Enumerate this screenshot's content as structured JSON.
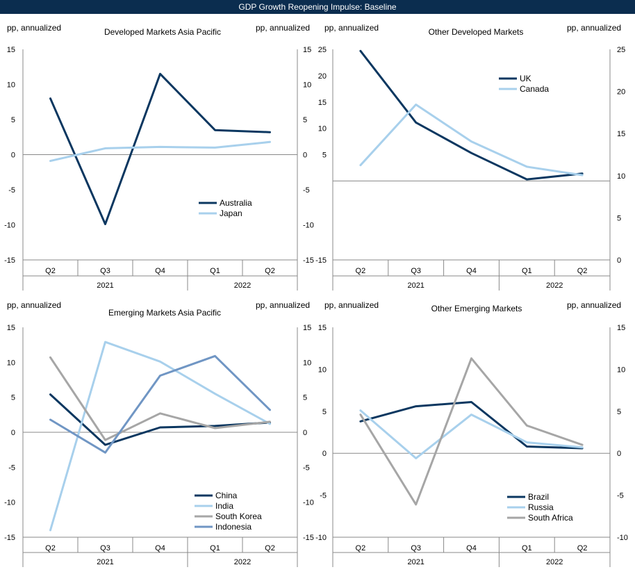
{
  "page_title": "GDP Growth Reopening Impulse: Baseline",
  "colors": {
    "banner": "#0b2d4f",
    "navy": "#0b3760",
    "light_blue": "#a8d0ec",
    "gray": "#a6a6a6",
    "steel_blue": "#7096c4",
    "axis": "#888888"
  },
  "chart_data": [
    {
      "type": "line",
      "title": "Developed Markets Asia Pacific",
      "ylabel_left": "pp, annualized",
      "ylabel_right": "pp, annualized",
      "categories": [
        "Q2",
        "Q3",
        "Q4",
        "Q1",
        "Q2"
      ],
      "year_labels": [
        "2021",
        "2022"
      ],
      "ylim": [
        -15,
        15
      ],
      "yticks": [
        "15",
        "10",
        "5",
        "0",
        "-5",
        "-10",
        "-15"
      ],
      "ylim_right": [
        -15,
        15
      ],
      "yticks_right": [
        "15",
        "10",
        "5",
        "0",
        "-5",
        "-10",
        "-15"
      ],
      "legend_position": "lower-right",
      "series": [
        {
          "name": "Australia",
          "color": "#0b3760",
          "values": [
            8.0,
            -9.9,
            11.5,
            3.5,
            3.2
          ]
        },
        {
          "name": "Japan",
          "color": "#a8d0ec",
          "values": [
            -0.9,
            0.9,
            1.1,
            1.0,
            1.8
          ]
        }
      ]
    },
    {
      "type": "line",
      "title": "Other Developed Markets",
      "ylabel_left": "pp, annualized",
      "ylabel_right": "pp, annualized",
      "categories": [
        "Q2",
        "Q3",
        "Q4",
        "Q1",
        "Q2"
      ],
      "year_labels": [
        "2021",
        "2022"
      ],
      "ylim": [
        -15,
        25
      ],
      "yticks": [
        "25",
        "20",
        "15",
        "10",
        "5",
        "-15"
      ],
      "ylim_right": [
        0,
        25
      ],
      "yticks_right": [
        "25",
        "20",
        "15",
        "10",
        "5",
        "0"
      ],
      "legend_position": "top-left",
      "series": [
        {
          "name": "UK",
          "color": "#0b3760",
          "values": [
            24.7,
            11.1,
            5.3,
            0.3,
            1.4
          ]
        },
        {
          "name": "Canada",
          "color": "#a8d0ec",
          "values": [
            3.0,
            14.5,
            7.5,
            2.7,
            1.1
          ]
        }
      ]
    },
    {
      "type": "line",
      "title": "Emerging Markets Asia Pacific",
      "ylabel_left": "pp, annualized",
      "ylabel_right": "pp, annualized",
      "categories": [
        "Q2",
        "Q3",
        "Q4",
        "Q1",
        "Q2"
      ],
      "year_labels": [
        "2021",
        "2022"
      ],
      "ylim": [
        -15,
        15
      ],
      "yticks": [
        "15",
        "10",
        "5",
        "0",
        "-5",
        "-10",
        "-15"
      ],
      "ylim_right": [
        -15,
        15
      ],
      "yticks_right": [
        "15",
        "10",
        "5",
        "0",
        "-5",
        "-10",
        "-15"
      ],
      "legend_position": "lower-right",
      "series": [
        {
          "name": "China",
          "color": "#0b3760",
          "values": [
            5.4,
            -1.8,
            0.7,
            0.9,
            1.4
          ]
        },
        {
          "name": "India",
          "color": "#a8d0ec",
          "values": [
            -14.0,
            12.9,
            10.1,
            5.5,
            1.2
          ]
        },
        {
          "name": "South Korea",
          "color": "#a6a6a6",
          "values": [
            10.7,
            -1.1,
            2.7,
            0.6,
            1.5
          ]
        },
        {
          "name": "Indonesia",
          "color": "#7096c4",
          "values": [
            1.8,
            -2.9,
            8.1,
            10.9,
            3.2
          ]
        }
      ]
    },
    {
      "type": "line",
      "title": "Other Emerging Markets",
      "ylabel_left": "pp, annualized",
      "ylabel_right": "pp, annualized",
      "categories": [
        "Q2",
        "Q3",
        "Q4",
        "Q1",
        "Q2"
      ],
      "year_labels": [
        "2021",
        "2022"
      ],
      "ylim": [
        -10,
        15
      ],
      "yticks": [
        "15",
        "10",
        "5",
        "0",
        "-5",
        "-10"
      ],
      "ylim_right": [
        -10,
        15
      ],
      "yticks_right": [
        "15",
        "10",
        "5",
        "0",
        "-5",
        "-10"
      ],
      "legend_position": "lower-right",
      "series": [
        {
          "name": "Brazil",
          "color": "#0b3760",
          "values": [
            3.8,
            5.6,
            6.1,
            0.8,
            0.6
          ]
        },
        {
          "name": "Russia",
          "color": "#a8d0ec",
          "values": [
            5.1,
            -0.6,
            4.6,
            1.3,
            0.7
          ]
        },
        {
          "name": "South Africa",
          "color": "#a6a6a6",
          "values": [
            4.6,
            -6.1,
            11.3,
            3.3,
            1.0
          ]
        }
      ]
    }
  ]
}
